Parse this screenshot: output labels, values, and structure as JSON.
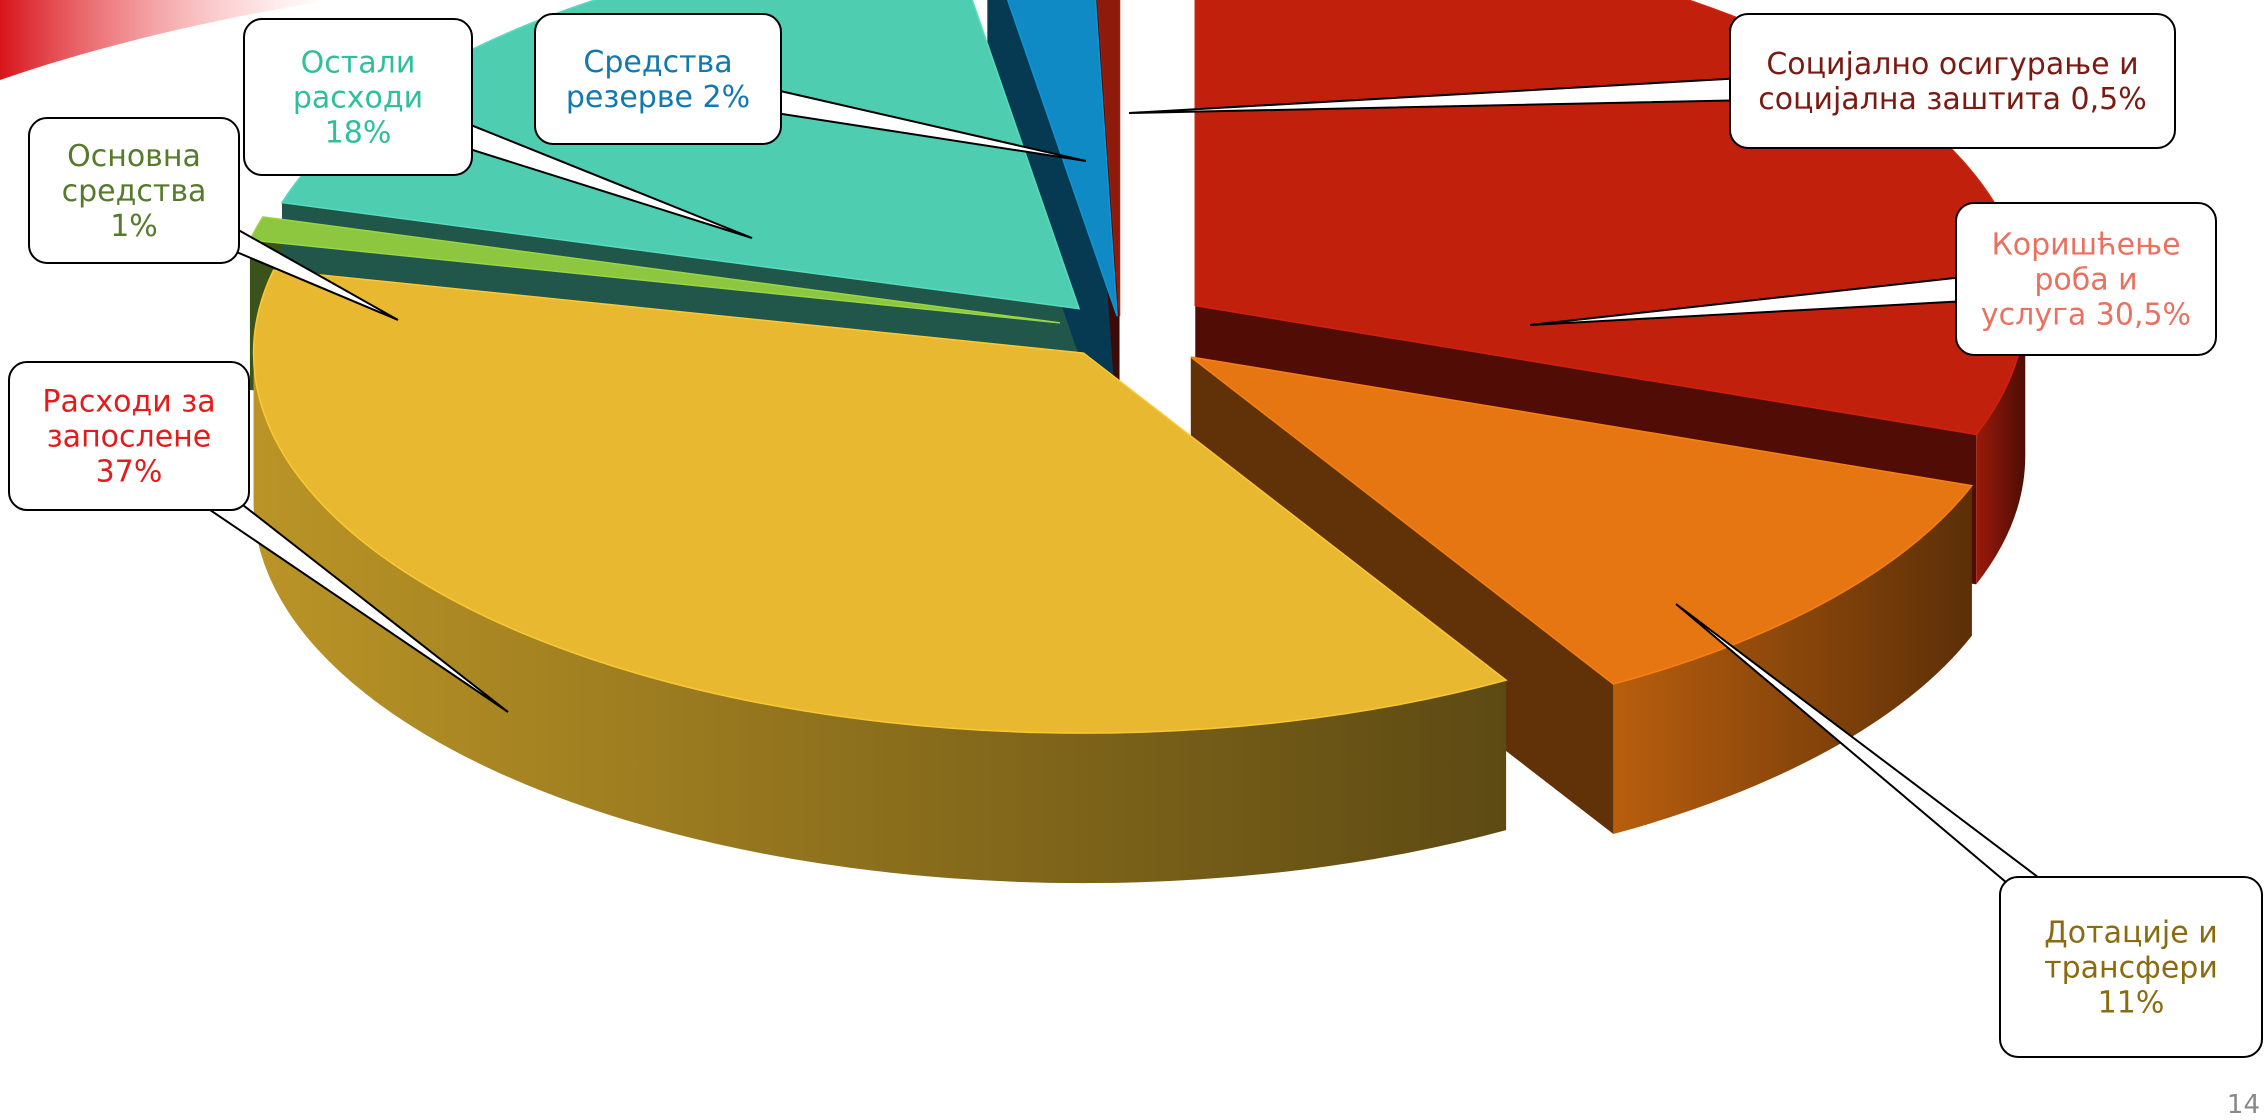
{
  "chart_data": {
    "type": "pie",
    "style": "3d-exploded",
    "slices": [
      {
        "label_lines": [
          "Коришћење",
          "роба и",
          "услуга 30,5%"
        ],
        "category": "Коришћење роба и услуга",
        "value": 30.5,
        "color": "#c1200d",
        "label_color": "#ea7060"
      },
      {
        "label_lines": [
          "Дотације и",
          "трансфери",
          "11%"
        ],
        "category": "Дотације и трансфери",
        "value": 11,
        "color": "#e67612",
        "label_color": "#8a6c10"
      },
      {
        "label_lines": [
          "Расходи за",
          "запослене",
          "37%"
        ],
        "category": "Расходи за запослене",
        "value": 37,
        "color": "#e8b930",
        "label_color": "#e41b1b"
      },
      {
        "label_lines": [
          "Основна",
          "средства",
          "1%"
        ],
        "category": "Основна средства",
        "value": 1,
        "color": "#8dc63f",
        "label_color": "#557a2a"
      },
      {
        "label_lines": [
          "Остали",
          "расходи",
          "18%"
        ],
        "category": "Остали расходи",
        "value": 18,
        "color": "#4ecdb0",
        "label_color": "#2fbf9e"
      },
      {
        "label_lines": [
          "Средства",
          "резерве 2%"
        ],
        "category": "Средства резерве",
        "value": 2,
        "color": "#0f8ac4",
        "label_color": "#1178b0"
      },
      {
        "label_lines": [
          "Социјално осигурање и",
          "социјална заштита 0,5%"
        ],
        "category": "Социјално осигурање и социјална заштита",
        "value": 0.5,
        "color": "#8e1a0c",
        "label_color": "#7a1a12"
      }
    ]
  },
  "page_number": "14"
}
